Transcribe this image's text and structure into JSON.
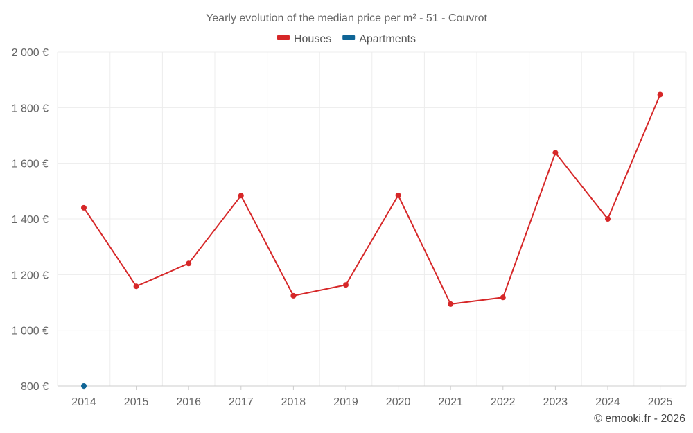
{
  "chart_data": {
    "type": "line",
    "title": "Yearly evolution of the median price per m² - 51 - Couvrot",
    "x": [
      "2014",
      "2015",
      "2016",
      "2017",
      "2018",
      "2019",
      "2020",
      "2021",
      "2022",
      "2023",
      "2024",
      "2025"
    ],
    "y_ticks": [
      "800 €",
      "1 000 €",
      "1 200 €",
      "1 400 €",
      "1 600 €",
      "1 800 €",
      "2 000 €"
    ],
    "y_tick_values": [
      800,
      1000,
      1200,
      1400,
      1600,
      1800,
      2000
    ],
    "ylim": [
      800,
      2000
    ],
    "grid": true,
    "legend_position": "top-center",
    "series": [
      {
        "name": "Houses",
        "color": "#d62728",
        "values": [
          1440,
          1158,
          1240,
          1484,
          1124,
          1163,
          1485,
          1094,
          1118,
          1638,
          1400,
          1847
        ]
      },
      {
        "name": "Apartments",
        "color": "#0f6596",
        "values": [
          800,
          null,
          null,
          null,
          null,
          null,
          null,
          null,
          null,
          null,
          null,
          null
        ]
      }
    ]
  },
  "credit": "© emooki.fr - 2026"
}
